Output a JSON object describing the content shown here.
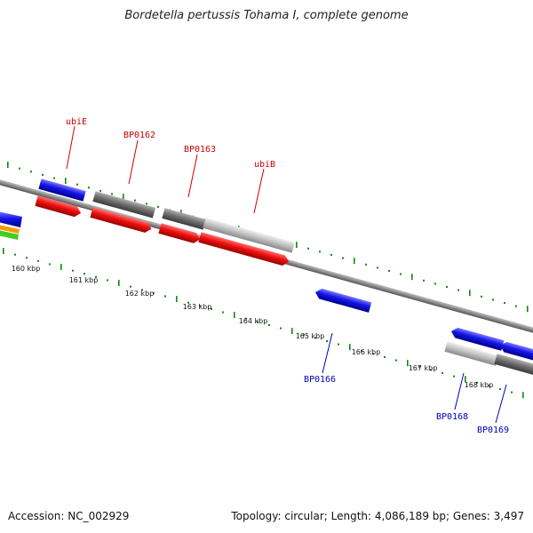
{
  "title": "Bordetella pertussis Tohama I, complete genome",
  "footer": {
    "accession": "Accession: NC_002929",
    "topology": "Topology: circular; Length: 4,086,189 bp; Genes: 3,497"
  },
  "colors": {
    "backbone": "#8a8a8a",
    "forward_gene": "#1010e0",
    "reverse_cds": "#ee1010",
    "gray_dark": "#707070",
    "gray_light": "#c8c8c8",
    "tick": "#118811",
    "label_top": "#cc0000",
    "label_bottom": "#0000bb"
  },
  "diagram": {
    "kbp_labels": [
      "160 kbp",
      "161 kbp",
      "162 kbp",
      "163 kbp",
      "164 kbp",
      "165 kbp",
      "166 kbp",
      "167 kbp",
      "168 kbp"
    ],
    "gene_labels_top": [
      "ubiE",
      "BP0162",
      "BP0163",
      "ubiB"
    ],
    "gene_labels_bottom": [
      "BP0166",
      "BP0168",
      "BP0169"
    ]
  }
}
